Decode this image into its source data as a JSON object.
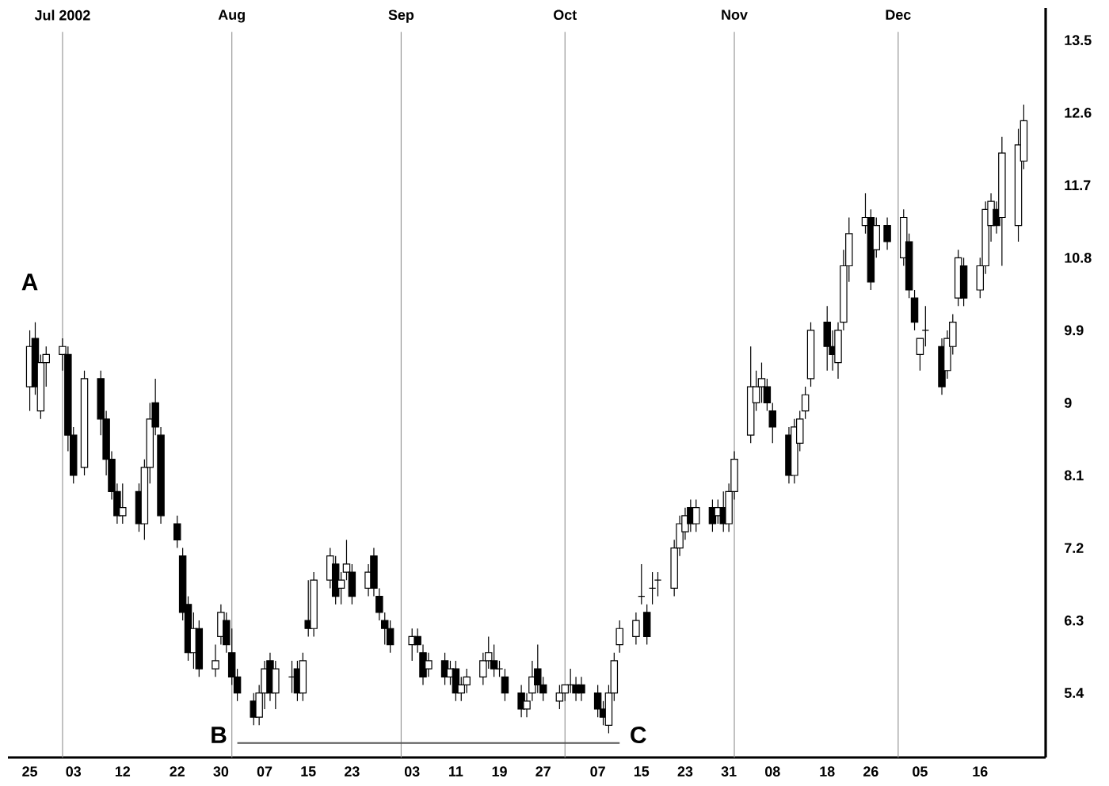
{
  "chart_data": {
    "type": "candlestick",
    "series": [
      {
        "x": [
          "2002-06-25",
          "2002-06-26",
          "2002-06-27",
          "2002-06-28",
          "2002-07-01",
          "2002-07-02",
          "2002-07-03",
          "2002-07-05",
          "2002-07-08",
          "2002-07-09",
          "2002-07-10",
          "2002-07-11",
          "2002-07-12",
          "2002-07-15",
          "2002-07-16",
          "2002-07-17",
          "2002-07-18",
          "2002-07-19",
          "2002-07-22",
          "2002-07-23",
          "2002-07-24",
          "2002-07-25",
          "2002-07-26",
          "2002-07-29",
          "2002-07-30",
          "2002-07-31",
          "2002-08-01",
          "2002-08-02",
          "2002-08-05",
          "2002-08-06",
          "2002-08-07",
          "2002-08-08",
          "2002-08-09",
          "2002-08-12",
          "2002-08-13",
          "2002-08-14",
          "2002-08-15",
          "2002-08-16",
          "2002-08-19",
          "2002-08-20",
          "2002-08-21",
          "2002-08-22",
          "2002-08-23",
          "2002-08-26",
          "2002-08-27",
          "2002-08-28",
          "2002-08-29",
          "2002-08-30",
          "2002-09-03",
          "2002-09-04",
          "2002-09-05",
          "2002-09-06",
          "2002-09-09",
          "2002-09-10",
          "2002-09-11",
          "2002-09-12",
          "2002-09-13",
          "2002-09-16",
          "2002-09-17",
          "2002-09-18",
          "2002-09-19",
          "2002-09-20",
          "2002-09-23",
          "2002-09-24",
          "2002-09-25",
          "2002-09-26",
          "2002-09-27",
          "2002-09-30",
          "2002-10-01",
          "2002-10-02",
          "2002-10-03",
          "2002-10-04",
          "2002-10-07",
          "2002-10-08",
          "2002-10-09",
          "2002-10-10",
          "2002-10-11",
          "2002-10-14",
          "2002-10-15",
          "2002-10-16",
          "2002-10-17",
          "2002-10-18",
          "2002-10-21",
          "2002-10-22",
          "2002-10-23",
          "2002-10-24",
          "2002-10-25",
          "2002-10-28",
          "2002-10-29",
          "2002-10-30",
          "2002-10-31",
          "2002-11-01",
          "2002-11-04",
          "2002-11-05",
          "2002-11-06",
          "2002-11-07",
          "2002-11-08",
          "2002-11-11",
          "2002-11-12",
          "2002-11-13",
          "2002-11-14",
          "2002-11-15",
          "2002-11-18",
          "2002-11-19",
          "2002-11-20",
          "2002-11-21",
          "2002-11-22",
          "2002-11-25",
          "2002-11-26",
          "2002-11-27",
          "2002-11-29",
          "2002-12-02",
          "2002-12-03",
          "2002-12-04",
          "2002-12-05",
          "2002-12-06",
          "2002-12-09",
          "2002-12-10",
          "2002-12-11",
          "2002-12-12",
          "2002-12-13",
          "2002-12-16",
          "2002-12-17",
          "2002-12-18",
          "2002-12-19",
          "2002-12-20",
          "2002-12-23",
          "2002-12-24"
        ],
        "ohlc": [
          [
            9.2,
            9.9,
            8.9,
            9.7
          ],
          [
            9.8,
            10.0,
            9.1,
            9.2
          ],
          [
            8.9,
            9.6,
            8.8,
            9.5
          ],
          [
            9.5,
            9.7,
            9.2,
            9.6
          ],
          [
            9.6,
            9.8,
            9.4,
            9.7
          ],
          [
            9.6,
            9.7,
            8.4,
            8.6
          ],
          [
            8.6,
            8.7,
            8.0,
            8.1
          ],
          [
            8.2,
            9.4,
            8.1,
            9.3
          ],
          [
            9.3,
            9.4,
            8.6,
            8.8
          ],
          [
            8.8,
            8.9,
            8.1,
            8.3
          ],
          [
            8.3,
            8.4,
            7.8,
            7.9
          ],
          [
            7.9,
            8.0,
            7.5,
            7.6
          ],
          [
            7.6,
            8.0,
            7.5,
            7.7
          ],
          [
            7.9,
            8.0,
            7.4,
            7.5
          ],
          [
            7.5,
            8.3,
            7.3,
            8.2
          ],
          [
            8.2,
            9.0,
            8.0,
            8.8
          ],
          [
            9.0,
            9.3,
            8.6,
            8.7
          ],
          [
            8.6,
            8.7,
            7.5,
            7.6
          ],
          [
            7.5,
            7.6,
            7.2,
            7.3
          ],
          [
            7.1,
            7.2,
            6.3,
            6.4
          ],
          [
            6.5,
            6.6,
            5.8,
            5.9
          ],
          [
            5.9,
            6.4,
            5.7,
            6.2
          ],
          [
            6.2,
            6.3,
            5.6,
            5.7
          ],
          [
            5.7,
            6.0,
            5.6,
            5.8
          ],
          [
            6.1,
            6.5,
            6.0,
            6.4
          ],
          [
            6.3,
            6.4,
            5.9,
            6.0
          ],
          [
            5.9,
            6.2,
            5.5,
            5.6
          ],
          [
            5.6,
            5.7,
            5.3,
            5.4
          ],
          [
            5.3,
            5.4,
            5.0,
            5.1
          ],
          [
            5.1,
            5.5,
            5.0,
            5.4
          ],
          [
            5.4,
            5.8,
            5.2,
            5.7
          ],
          [
            5.8,
            5.9,
            5.3,
            5.4
          ],
          [
            5.4,
            5.8,
            5.2,
            5.7
          ],
          [
            5.6,
            5.8,
            5.4,
            5.6
          ],
          [
            5.7,
            5.8,
            5.3,
            5.4
          ],
          [
            5.4,
            5.9,
            5.3,
            5.8
          ],
          [
            6.3,
            6.8,
            6.1,
            6.2
          ],
          [
            6.2,
            6.9,
            6.1,
            6.8
          ],
          [
            6.8,
            7.2,
            6.7,
            7.1
          ],
          [
            7.0,
            7.1,
            6.5,
            6.6
          ],
          [
            6.7,
            6.9,
            6.5,
            6.8
          ],
          [
            6.9,
            7.3,
            6.8,
            7.0
          ],
          [
            6.9,
            7.0,
            6.5,
            6.6
          ],
          [
            6.7,
            7.0,
            6.6,
            6.9
          ],
          [
            7.1,
            7.2,
            6.6,
            6.7
          ],
          [
            6.6,
            6.7,
            6.3,
            6.4
          ],
          [
            6.3,
            6.4,
            6.0,
            6.2
          ],
          [
            6.2,
            6.3,
            5.9,
            6.0
          ],
          [
            6.0,
            6.2,
            5.8,
            6.1
          ],
          [
            6.1,
            6.2,
            5.9,
            6.0
          ],
          [
            5.9,
            6.0,
            5.5,
            5.6
          ],
          [
            5.7,
            5.9,
            5.6,
            5.8
          ],
          [
            5.8,
            5.9,
            5.5,
            5.6
          ],
          [
            5.6,
            5.8,
            5.5,
            5.7
          ],
          [
            5.7,
            5.8,
            5.3,
            5.4
          ],
          [
            5.4,
            5.6,
            5.3,
            5.5
          ],
          [
            5.5,
            5.7,
            5.4,
            5.6
          ],
          [
            5.6,
            5.9,
            5.5,
            5.8
          ],
          [
            5.8,
            6.1,
            5.7,
            5.9
          ],
          [
            5.8,
            6.0,
            5.6,
            5.7
          ],
          [
            5.7,
            5.8,
            5.6,
            5.7
          ],
          [
            5.6,
            5.7,
            5.3,
            5.4
          ],
          [
            5.4,
            5.5,
            5.1,
            5.2
          ],
          [
            5.2,
            5.4,
            5.1,
            5.3
          ],
          [
            5.4,
            5.8,
            5.3,
            5.6
          ],
          [
            5.7,
            6.0,
            5.4,
            5.5
          ],
          [
            5.5,
            5.6,
            5.3,
            5.4
          ],
          [
            5.3,
            5.5,
            5.2,
            5.4
          ],
          [
            5.4,
            5.5,
            5.3,
            5.5
          ],
          [
            5.5,
            5.7,
            5.4,
            5.5
          ],
          [
            5.5,
            5.6,
            5.3,
            5.4
          ],
          [
            5.5,
            5.6,
            5.3,
            5.4
          ],
          [
            5.4,
            5.5,
            5.1,
            5.2
          ],
          [
            5.2,
            5.3,
            5.0,
            5.1
          ],
          [
            5.0,
            5.5,
            4.9,
            5.4
          ],
          [
            5.4,
            5.9,
            5.3,
            5.8
          ],
          [
            6.0,
            6.3,
            5.9,
            6.2
          ],
          [
            6.1,
            6.4,
            6.0,
            6.3
          ],
          [
            6.6,
            7.0,
            6.5,
            6.6
          ],
          [
            6.4,
            6.5,
            6.0,
            6.1
          ],
          [
            6.7,
            6.9,
            6.5,
            6.7
          ],
          [
            6.8,
            6.9,
            6.6,
            6.8
          ],
          [
            6.7,
            7.3,
            6.6,
            7.2
          ],
          [
            7.2,
            7.6,
            7.1,
            7.5
          ],
          [
            7.4,
            7.7,
            7.3,
            7.6
          ],
          [
            7.7,
            7.8,
            7.4,
            7.5
          ],
          [
            7.5,
            7.8,
            7.4,
            7.7
          ],
          [
            7.7,
            7.8,
            7.4,
            7.5
          ],
          [
            7.6,
            7.8,
            7.5,
            7.7
          ],
          [
            7.7,
            7.9,
            7.4,
            7.5
          ],
          [
            7.5,
            8.0,
            7.4,
            7.9
          ],
          [
            7.9,
            8.4,
            7.8,
            8.3
          ],
          [
            8.6,
            9.7,
            8.5,
            9.2
          ],
          [
            9.0,
            9.4,
            8.9,
            9.2
          ],
          [
            9.2,
            9.5,
            9.0,
            9.3
          ],
          [
            9.2,
            9.3,
            8.9,
            9.0
          ],
          [
            8.9,
            9.0,
            8.5,
            8.7
          ],
          [
            8.6,
            8.7,
            8.0,
            8.1
          ],
          [
            8.1,
            8.8,
            8.0,
            8.7
          ],
          [
            8.5,
            8.9,
            8.4,
            8.8
          ],
          [
            8.9,
            9.2,
            8.8,
            9.1
          ],
          [
            9.3,
            10.0,
            9.2,
            9.9
          ],
          [
            10.0,
            10.2,
            9.4,
            9.7
          ],
          [
            9.7,
            9.9,
            9.4,
            9.6
          ],
          [
            9.5,
            10.0,
            9.3,
            9.9
          ],
          [
            10.0,
            10.9,
            9.9,
            10.7
          ],
          [
            10.7,
            11.3,
            10.5,
            11.1
          ],
          [
            11.2,
            11.6,
            11.1,
            11.3
          ],
          [
            11.3,
            11.4,
            10.4,
            10.5
          ],
          [
            10.9,
            11.3,
            10.8,
            11.2
          ],
          [
            11.2,
            11.3,
            10.9,
            11.0
          ],
          [
            10.8,
            11.4,
            10.7,
            11.3
          ],
          [
            11.0,
            11.1,
            10.3,
            10.4
          ],
          [
            10.3,
            10.4,
            9.9,
            10.0
          ],
          [
            9.6,
            9.8,
            9.4,
            9.8
          ],
          [
            9.9,
            10.2,
            9.7,
            9.9
          ],
          [
            9.7,
            9.8,
            9.1,
            9.2
          ],
          [
            9.4,
            9.9,
            9.3,
            9.8
          ],
          [
            9.7,
            10.1,
            9.6,
            10.0
          ],
          [
            10.3,
            10.9,
            10.2,
            10.8
          ],
          [
            10.7,
            10.8,
            10.2,
            10.3
          ],
          [
            10.4,
            10.8,
            10.3,
            10.7
          ],
          [
            10.7,
            11.5,
            10.6,
            11.4
          ],
          [
            11.2,
            11.6,
            11.0,
            11.5
          ],
          [
            11.4,
            11.5,
            11.1,
            11.2
          ],
          [
            11.3,
            12.3,
            10.7,
            12.1
          ],
          [
            11.2,
            12.4,
            11.0,
            12.2
          ],
          [
            12.0,
            12.7,
            11.9,
            12.5
          ]
        ]
      },
      {
        "type": "line",
        "x": [
          "2002-08-02",
          "2002-10-11"
        ],
        "values": [
          4.78,
          4.78
        ],
        "color": "#555555"
      }
    ],
    "annotations": [
      "A",
      "B",
      "C"
    ],
    "ref_lines": [
      {
        "axis": "x",
        "value": "2002-07-01",
        "label": "Jul 2002",
        "color": "#999999"
      },
      {
        "axis": "x",
        "value": "2002-08-01",
        "label": "Aug",
        "color": "#999999"
      },
      {
        "axis": "x",
        "value": "2002-09-01",
        "label": "Sep",
        "color": "#999999"
      },
      {
        "axis": "x",
        "value": "2002-10-01",
        "label": "Oct",
        "color": "#999999"
      },
      {
        "axis": "x",
        "value": "2002-11-01",
        "label": "Nov",
        "color": "#999999"
      },
      {
        "axis": "x",
        "value": "2002-12-01",
        "label": "Dec",
        "color": "#999999"
      }
    ],
    "xlim": [
      "2002-06-21",
      "2002-12-28"
    ],
    "xticks": [
      {
        "value": "2002-06-25",
        "label": "25"
      },
      {
        "value": "2002-07-03",
        "label": "03"
      },
      {
        "value": "2002-07-12",
        "label": "12"
      },
      {
        "value": "2002-07-22",
        "label": "22"
      },
      {
        "value": "2002-07-30",
        "label": "30"
      },
      {
        "value": "2002-08-07",
        "label": "07"
      },
      {
        "value": "2002-08-15",
        "label": "15"
      },
      {
        "value": "2002-08-23",
        "label": "23"
      },
      {
        "value": "2002-09-03",
        "label": "03"
      },
      {
        "value": "2002-09-11",
        "label": "11"
      },
      {
        "value": "2002-09-19",
        "label": "19"
      },
      {
        "value": "2002-09-27",
        "label": "27"
      },
      {
        "value": "2002-10-07",
        "label": "07"
      },
      {
        "value": "2002-10-15",
        "label": "15"
      },
      {
        "value": "2002-10-23",
        "label": "23"
      },
      {
        "value": "2002-10-31",
        "label": "31"
      },
      {
        "value": "2002-11-08",
        "label": "08"
      },
      {
        "value": "2002-11-18",
        "label": "18"
      },
      {
        "value": "2002-11-26",
        "label": "26"
      },
      {
        "value": "2002-12-05",
        "label": "05"
      },
      {
        "value": "2002-12-16",
        "label": "16"
      }
    ],
    "ylim": [
      4.6,
      13.9
    ],
    "yticks": [
      5.4,
      6.3,
      7.2,
      8.1,
      9,
      9.9,
      10.8,
      11.7,
      12.6,
      13.5
    ]
  }
}
